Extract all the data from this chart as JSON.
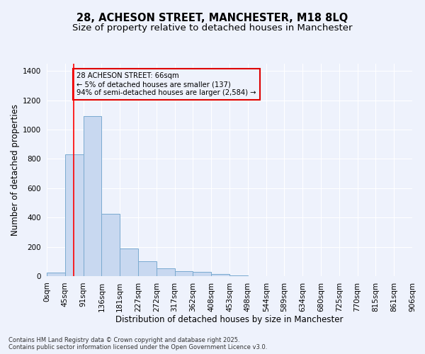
{
  "title_line1": "28, ACHESON STREET, MANCHESTER, M18 8LQ",
  "title_line2": "Size of property relative to detached houses in Manchester",
  "xlabel": "Distribution of detached houses by size in Manchester",
  "ylabel": "Number of detached properties",
  "bar_color": "#c8d8f0",
  "bar_edge_color": "#7aaad0",
  "red_line_x": 66,
  "annotation_text": "28 ACHESON STREET: 66sqm\n← 5% of detached houses are smaller (137)\n94% of semi-detached houses are larger (2,584) →",
  "annotation_box_color": "#dd0000",
  "background_color": "#eef2fc",
  "grid_color": "#ffffff",
  "bin_edges": [
    0,
    45,
    91,
    136,
    181,
    227,
    272,
    317,
    362,
    408,
    453,
    498,
    544,
    589,
    634,
    680,
    725,
    770,
    815,
    861,
    906
  ],
  "bar_heights": [
    25,
    830,
    1090,
    425,
    190,
    100,
    55,
    35,
    30,
    15,
    5,
    2,
    1,
    0,
    0,
    0,
    0,
    0,
    0,
    0
  ],
  "ylim": [
    0,
    1450
  ],
  "yticks": [
    0,
    200,
    400,
    600,
    800,
    1000,
    1200,
    1400
  ],
  "footer_text": "Contains HM Land Registry data © Crown copyright and database right 2025.\nContains public sector information licensed under the Open Government Licence v3.0.",
  "title_fontsize": 10.5,
  "subtitle_fontsize": 9.5,
  "axis_label_fontsize": 8.5,
  "tick_label_fontsize": 7.5,
  "footer_fontsize": 6.0
}
